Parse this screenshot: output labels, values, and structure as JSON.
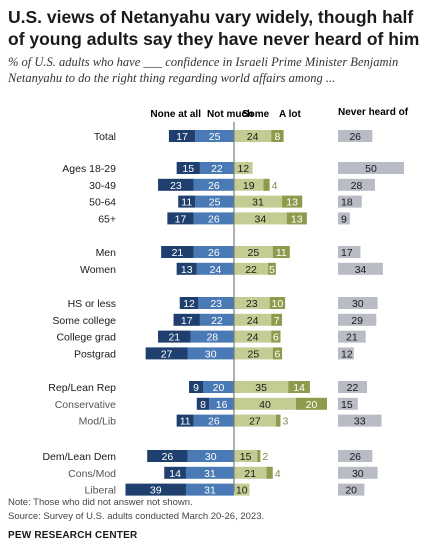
{
  "header": {
    "title": "U.S. views of Netanyahu vary widely, though half of young adults say they have never heard of him",
    "subtitle": "% of U.S. adults who have ___ confidence in Israeli Prime Minister Benjamin Netanyahu to do the right thing regarding world affairs among ..."
  },
  "footer": {
    "note": "Note: Those who did not answer not shown.",
    "source": "Source: Survey of U.S. adults conducted March 20-26, 2023.",
    "credit": "PEW RESEARCH CENTER"
  },
  "colors": {
    "none_at_all": "#1f3f6e",
    "not_much": "#4a7ab6",
    "some": "#c3cc92",
    "a_lot": "#8c9c4c",
    "never_heard": "#b9bcc5",
    "divider": "#7d7d7d"
  },
  "chart_data": {
    "type": "bar",
    "series": [
      {
        "name": "None at all"
      },
      {
        "name": "Not much"
      },
      {
        "name": "Some"
      },
      {
        "name": "A lot"
      },
      {
        "name": "Never heard of"
      }
    ],
    "rows": [
      {
        "label": "Total",
        "none": 17,
        "not_much": 25,
        "some": 24,
        "a_lot": 8,
        "never_heard": 26,
        "group": 0,
        "bold": true
      },
      {
        "label": "Ages 18-29",
        "none": 15,
        "not_much": 22,
        "some": 12,
        "a_lot": 0,
        "never_heard": 50,
        "group": 1
      },
      {
        "label": "30-49",
        "none": 23,
        "not_much": 26,
        "some": 19,
        "a_lot": 4,
        "never_heard": 28,
        "group": 1
      },
      {
        "label": "50-64",
        "none": 11,
        "not_much": 25,
        "some": 31,
        "a_lot": 13,
        "never_heard": 18,
        "group": 1
      },
      {
        "label": "65+",
        "none": 17,
        "not_much": 26,
        "some": 34,
        "a_lot": 13,
        "never_heard": 9,
        "group": 1
      },
      {
        "label": "Men",
        "none": 21,
        "not_much": 26,
        "some": 25,
        "a_lot": 11,
        "never_heard": 17,
        "group": 2
      },
      {
        "label": "Women",
        "none": 13,
        "not_much": 24,
        "some": 22,
        "a_lot": 5,
        "never_heard": 34,
        "group": 2
      },
      {
        "label": "HS or less",
        "none": 12,
        "not_much": 23,
        "some": 23,
        "a_lot": 10,
        "never_heard": 30,
        "group": 3
      },
      {
        "label": "Some college",
        "none": 17,
        "not_much": 22,
        "some": 24,
        "a_lot": 7,
        "never_heard": 29,
        "group": 3
      },
      {
        "label": "College grad",
        "none": 21,
        "not_much": 28,
        "some": 24,
        "a_lot": 6,
        "never_heard": 21,
        "group": 3
      },
      {
        "label": "Postgrad",
        "none": 27,
        "not_much": 30,
        "some": 25,
        "a_lot": 6,
        "never_heard": 12,
        "group": 3
      },
      {
        "label": "Rep/Lean Rep",
        "none": 9,
        "not_much": 20,
        "some": 35,
        "a_lot": 14,
        "never_heard": 22,
        "group": 4
      },
      {
        "label": "Conservative",
        "none": 8,
        "not_much": 16,
        "some": 40,
        "a_lot": 20,
        "never_heard": 15,
        "group": 4,
        "sub": true
      },
      {
        "label": "Mod/Lib",
        "none": 11,
        "not_much": 26,
        "some": 27,
        "a_lot": 3,
        "never_heard": 33,
        "group": 4,
        "sub": true
      },
      {
        "label": "Dem/Lean Dem",
        "none": 26,
        "not_much": 30,
        "some": 15,
        "a_lot": 2,
        "never_heard": 26,
        "group": 5
      },
      {
        "label": "Cons/Mod",
        "none": 14,
        "not_much": 31,
        "some": 21,
        "a_lot": 4,
        "never_heard": 30,
        "group": 5,
        "sub": true
      },
      {
        "label": "Liberal",
        "none": 39,
        "not_much": 31,
        "some": 10,
        "a_lot": 0,
        "never_heard": 20,
        "group": 5,
        "sub": true
      }
    ]
  }
}
